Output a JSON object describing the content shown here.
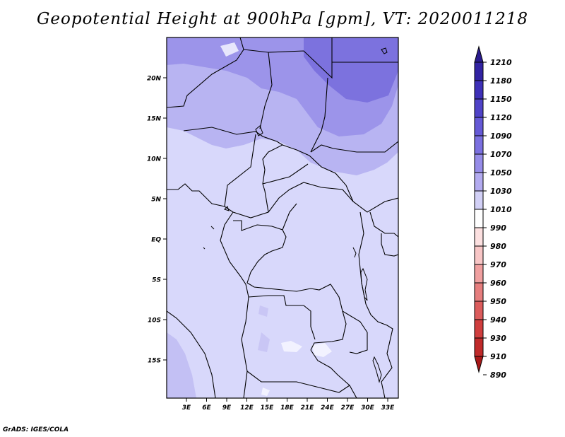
{
  "title": "Geopotential Height at 900hPa [gpm], VT: 2020011218",
  "footer": "GrADS: IGES/COLA",
  "axes": {
    "lat_labels": [
      "20N",
      "15N",
      "10N",
      "5N",
      "EQ",
      "5S",
      "10S",
      "15S"
    ],
    "lon_labels": [
      "3E",
      "6E",
      "9E",
      "12E",
      "15E",
      "18E",
      "21E",
      "24E",
      "27E",
      "30E",
      "33E"
    ]
  },
  "colorbar": {
    "labels": [
      "1210",
      "1180",
      "1150",
      "1120",
      "1090",
      "1070",
      "1050",
      "1030",
      "1010",
      "990",
      "980",
      "970",
      "960",
      "950",
      "940",
      "930",
      "910",
      "890"
    ],
    "colors": [
      "#2a1b8e",
      "#3223a3",
      "#3e30b8",
      "#5043c8",
      "#6559d6",
      "#7b70e0",
      "#968ce8",
      "#b3abf0",
      "#d2d0f6",
      "#ffffff",
      "#fce0e0",
      "#f8c6c6",
      "#f0a0a0",
      "#e67e7e",
      "#dc5c5c",
      "#d03e3e",
      "#c02a2a",
      "#a81818"
    ]
  }
}
